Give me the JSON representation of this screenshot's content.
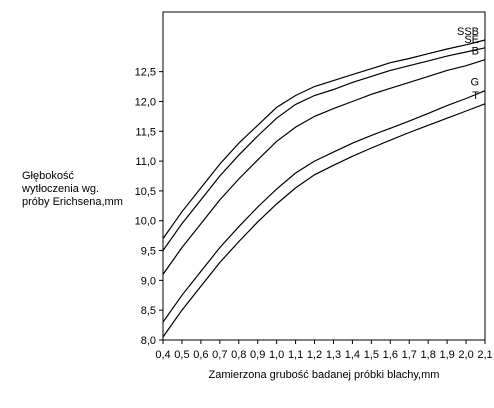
{
  "chart_data": {
    "type": "line",
    "title": "",
    "ylabel_lines": [
      "Głębokość",
      "wytłoczenia wg.",
      "próby Erichsena,mm"
    ],
    "xlabel": "Zamierzona grubość badanej próbki blachy,mm",
    "xlim": [
      0.4,
      2.1
    ],
    "ylim": [
      8.0,
      13.5
    ],
    "x_ticks": [
      {
        "value": 0.4,
        "label": "0,4"
      },
      {
        "value": 0.5,
        "label": "0,5"
      },
      {
        "value": 0.6,
        "label": "0,6"
      },
      {
        "value": 0.7,
        "label": "0,7"
      },
      {
        "value": 0.8,
        "label": "0,8"
      },
      {
        "value": 0.9,
        "label": "0,9"
      },
      {
        "value": 1.0,
        "label": "1,0"
      },
      {
        "value": 1.1,
        "label": "1,1"
      },
      {
        "value": 1.2,
        "label": "1,2"
      },
      {
        "value": 1.3,
        "label": "1,3"
      },
      {
        "value": 1.4,
        "label": "1,4"
      },
      {
        "value": 1.5,
        "label": "1,5"
      },
      {
        "value": 1.6,
        "label": "1,6"
      },
      {
        "value": 1.7,
        "label": "1,7"
      },
      {
        "value": 1.8,
        "label": "1,8"
      },
      {
        "value": 1.9,
        "label": "1,9"
      },
      {
        "value": 2.0,
        "label": "2,0"
      },
      {
        "value": 2.1,
        "label": "2,1"
      }
    ],
    "y_ticks": [
      {
        "value": 8.0,
        "label": "8,0"
      },
      {
        "value": 8.5,
        "label": "8,5"
      },
      {
        "value": 9.0,
        "label": "9,0"
      },
      {
        "value": 9.5,
        "label": "9,5"
      },
      {
        "value": 10.0,
        "label": "10,0"
      },
      {
        "value": 10.5,
        "label": "10,5"
      },
      {
        "value": 11.0,
        "label": "11,0"
      },
      {
        "value": 11.5,
        "label": "11,5"
      },
      {
        "value": 12.0,
        "label": "12,0"
      },
      {
        "value": 12.5,
        "label": "12,5"
      }
    ],
    "grid": false,
    "legend": "inline labels at right end of lines",
    "series": [
      {
        "name": "SSB",
        "x": [
          0.4,
          0.5,
          0.6,
          0.7,
          0.8,
          0.9,
          1.0,
          1.1,
          1.2,
          1.3,
          1.4,
          1.5,
          1.6,
          1.7,
          1.8,
          1.9,
          2.0,
          2.1
        ],
        "values": [
          9.7,
          10.15,
          10.55,
          10.95,
          11.3,
          11.6,
          11.9,
          12.1,
          12.25,
          12.35,
          12.45,
          12.55,
          12.65,
          12.72,
          12.8,
          12.88,
          12.95,
          13.03
        ]
      },
      {
        "name": "SE",
        "x": [
          0.4,
          0.5,
          0.6,
          0.7,
          0.8,
          0.9,
          1.0,
          1.1,
          1.2,
          1.3,
          1.4,
          1.5,
          1.6,
          1.7,
          1.8,
          1.9,
          2.0,
          2.1
        ],
        "values": [
          9.5,
          9.95,
          10.35,
          10.75,
          11.1,
          11.42,
          11.72,
          11.95,
          12.1,
          12.2,
          12.32,
          12.42,
          12.52,
          12.6,
          12.68,
          12.76,
          12.83,
          12.9
        ]
      },
      {
        "name": "B",
        "x": [
          0.4,
          0.5,
          0.6,
          0.7,
          0.8,
          0.9,
          1.0,
          1.1,
          1.2,
          1.3,
          1.4,
          1.5,
          1.6,
          1.7,
          1.8,
          1.9,
          2.0,
          2.1
        ],
        "values": [
          9.1,
          9.55,
          9.95,
          10.35,
          10.7,
          11.02,
          11.33,
          11.57,
          11.75,
          11.88,
          12.0,
          12.12,
          12.22,
          12.32,
          12.42,
          12.52,
          12.6,
          12.7
        ]
      },
      {
        "name": "G",
        "x": [
          0.4,
          0.5,
          0.6,
          0.7,
          0.8,
          0.9,
          1.0,
          1.1,
          1.2,
          1.3,
          1.4,
          1.5,
          1.6,
          1.7,
          1.8,
          1.9,
          2.0,
          2.1
        ],
        "values": [
          8.3,
          8.75,
          9.15,
          9.55,
          9.9,
          10.23,
          10.53,
          10.8,
          11.0,
          11.15,
          11.3,
          11.43,
          11.55,
          11.67,
          11.8,
          11.93,
          12.05,
          12.18
        ]
      },
      {
        "name": "T",
        "x": [
          0.4,
          0.5,
          0.6,
          0.7,
          0.8,
          0.9,
          1.0,
          1.1,
          1.2,
          1.3,
          1.4,
          1.5,
          1.6,
          1.7,
          1.8,
          1.9,
          2.0,
          2.1
        ],
        "values": [
          8.05,
          8.5,
          8.9,
          9.3,
          9.65,
          9.98,
          10.28,
          10.55,
          10.77,
          10.93,
          11.08,
          11.22,
          11.35,
          11.48,
          11.6,
          11.72,
          11.84,
          11.96
        ]
      }
    ]
  }
}
